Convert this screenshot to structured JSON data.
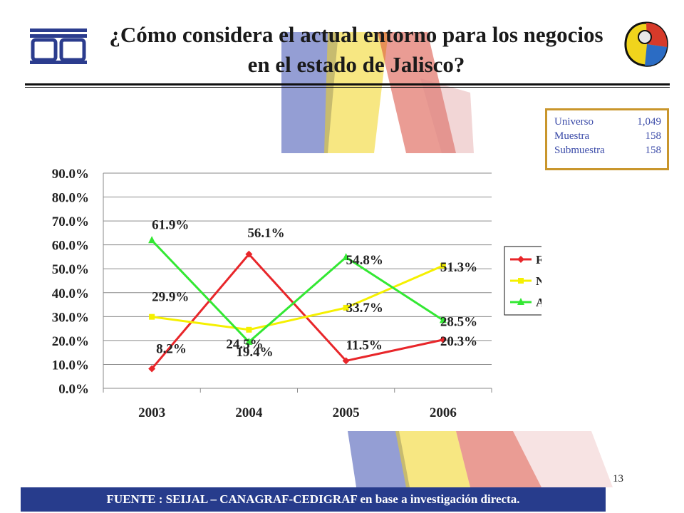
{
  "title": "¿Cómo considera el actual entorno para los negocios en el estado de Jalisco?",
  "info_box": {
    "rows": [
      {
        "label": "Universo",
        "value": "1,049"
      },
      {
        "label": "Muestra",
        "value": "158"
      },
      {
        "label": "Submuestra",
        "value": "158"
      }
    ]
  },
  "page_number": "13",
  "footer": "FUENTE : SEIJAL – CANAGRAF-CEDIGRAF en base a investigación directa.",
  "colors": {
    "favorable": "#e8262a",
    "normal": "#f5f000",
    "adverso": "#33e833",
    "footer_bg": "#273c8c",
    "infobox_border": "#c9962c"
  },
  "chart_data": {
    "type": "line",
    "title": "",
    "xlabel": "",
    "ylabel": "",
    "categories": [
      "2003",
      "2004",
      "2005",
      "2006"
    ],
    "ylim": [
      0,
      90
    ],
    "y_ticks": [
      "0.0%",
      "10.0%",
      "20.0%",
      "30.0%",
      "40.0%",
      "50.0%",
      "60.0%",
      "70.0%",
      "80.0%",
      "90.0%"
    ],
    "grid": true,
    "legend": "right",
    "series": [
      {
        "name": "Favorable",
        "values": [
          8.2,
          56.1,
          11.5,
          20.3
        ],
        "labels": [
          "8.2%",
          "56.1%",
          "11.5%",
          "20.3%"
        ],
        "color": "#e8262a",
        "marker": "diamond"
      },
      {
        "name": "Normal",
        "values": [
          29.9,
          24.5,
          33.7,
          51.3
        ],
        "labels": [
          "29.9%",
          "24.5%",
          "33.7%",
          "51.3%"
        ],
        "color": "#f5f000",
        "marker": "square"
      },
      {
        "name": "Adverso",
        "values": [
          61.9,
          19.4,
          54.8,
          28.5
        ],
        "labels": [
          "61.9%",
          "19.4%",
          "54.8%",
          "28.5%"
        ],
        "color": "#33e833",
        "marker": "triangle"
      }
    ]
  }
}
